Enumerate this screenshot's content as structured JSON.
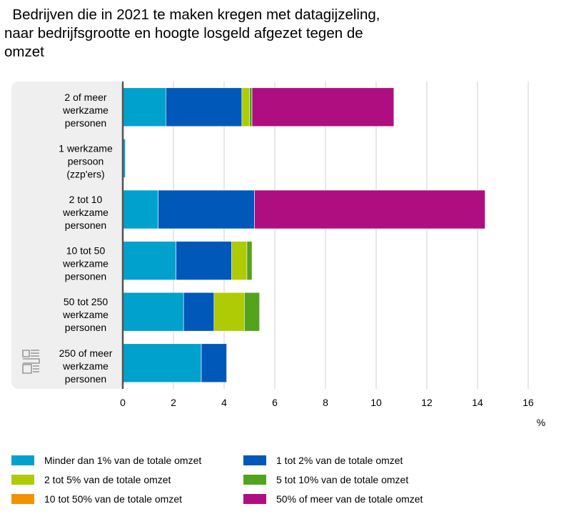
{
  "title_lines": [
    "  Bedrijven die in 2021 te maken kregen met datagijzeling,",
    "naar bedrijfsgrootte en hoogte losgeld afgezet tegen de",
    "omzet"
  ],
  "chart_data": {
    "type": "bar",
    "orientation": "horizontal",
    "stacked": true,
    "title": "Bedrijven die in 2021 te maken kregen met datagijzeling, naar bedrijfsgrootte en hoogte losgeld afgezet tegen de omzet",
    "xlabel": "%",
    "xlim": [
      0,
      16
    ],
    "xticks": [
      0,
      2,
      4,
      6,
      8,
      10,
      12,
      14,
      16
    ],
    "grid": true,
    "legend_position": "bottom",
    "categories": [
      [
        "2 of meer",
        "werkzame",
        "personen"
      ],
      [
        "1 werkzame",
        "persoon",
        "(zzp'ers)"
      ],
      [
        "2 tot 10",
        "werkzame",
        "personen"
      ],
      [
        "10 tot 50",
        "werkzame",
        "personen"
      ],
      [
        "50 tot 250",
        "werkzame",
        "personen"
      ],
      [
        "250 of meer",
        "werkzame",
        "personen"
      ]
    ],
    "series": [
      {
        "name": "Minder dan 1% van de totale omzet",
        "color": "#00a1cd",
        "values": [
          1.7,
          0.1,
          1.4,
          2.1,
          2.4,
          3.1
        ]
      },
      {
        "name": "1 tot 2% van de totale omzet",
        "color": "#0058b8",
        "values": [
          3.0,
          0,
          3.8,
          2.2,
          1.2,
          1.0
        ]
      },
      {
        "name": "2 tot 5% van de totale omzet",
        "color": "#afcb05",
        "values": [
          0.3,
          0,
          0,
          0.6,
          1.2,
          0
        ]
      },
      {
        "name": "5 tot 10% van de totale omzet",
        "color": "#53a31d",
        "values": [
          0.1,
          0,
          0,
          0.2,
          0.6,
          0
        ]
      },
      {
        "name": "10 tot 50% van de totale omzet",
        "color": "#f39200",
        "values": [
          0,
          0,
          0,
          0,
          0,
          0
        ]
      },
      {
        "name": "50% of meer van de totale omzet",
        "color": "#af0e80",
        "values": [
          5.6,
          0,
          9.1,
          0,
          0,
          0
        ]
      }
    ]
  },
  "icons": {
    "logo": "cbs-logo-icon"
  }
}
